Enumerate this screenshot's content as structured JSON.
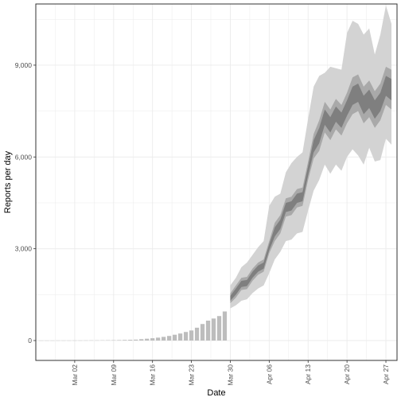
{
  "chart_data": {
    "type": "area",
    "xlabel": "Date",
    "ylabel": "Reports per day",
    "x_range": [
      "2020-02-24",
      "2020-04-29"
    ],
    "ylim": [
      -650,
      11000
    ],
    "y_ticks": [
      0,
      3000,
      6000,
      9000
    ],
    "y_tick_labels": [
      "0",
      "3,000",
      "6,000",
      "9,000"
    ],
    "x_ticks": [
      "2020-03-02",
      "2020-03-09",
      "2020-03-16",
      "2020-03-23",
      "2020-03-30",
      "2020-04-06",
      "2020-04-13",
      "2020-04-20",
      "2020-04-27"
    ],
    "x_tick_labels": [
      "Mar 02",
      "Mar 09",
      "Mar 16",
      "Mar 23",
      "Mar 30",
      "Apr 06",
      "Apr 13",
      "Apr 20",
      "Apr 27"
    ],
    "grid": true,
    "colors": {
      "bars": "#bdbdbd",
      "band_outer": "#d3d3d3",
      "band_mid": "#a9a9a9",
      "band_inner": "#7f7f7f",
      "panel_border": "#333333",
      "grid": "#ebebeb"
    },
    "bars": {
      "dates": [
        "2020-02-25",
        "2020-02-26",
        "2020-02-27",
        "2020-02-28",
        "2020-02-29",
        "2020-03-01",
        "2020-03-02",
        "2020-03-03",
        "2020-03-04",
        "2020-03-05",
        "2020-03-06",
        "2020-03-07",
        "2020-03-08",
        "2020-03-09",
        "2020-03-10",
        "2020-03-11",
        "2020-03-12",
        "2020-03-13",
        "2020-03-14",
        "2020-03-15",
        "2020-03-16",
        "2020-03-17",
        "2020-03-18",
        "2020-03-19",
        "2020-03-20",
        "2020-03-21",
        "2020-03-22",
        "2020-03-23",
        "2020-03-24",
        "2020-03-25",
        "2020-03-26",
        "2020-03-27",
        "2020-03-28",
        "2020-03-29"
      ],
      "values": [
        1,
        1,
        1,
        2,
        2,
        2,
        3,
        3,
        4,
        5,
        6,
        8,
        10,
        12,
        15,
        20,
        25,
        30,
        45,
        60,
        75,
        95,
        120,
        150,
        190,
        230,
        280,
        330,
        420,
        540,
        650,
        720,
        800,
        950
      ]
    },
    "series": [
      {
        "dates": [
          "2020-03-30",
          "2020-03-31",
          "2020-04-01",
          "2020-04-02",
          "2020-04-03",
          "2020-04-04",
          "2020-04-05",
          "2020-04-06",
          "2020-04-07",
          "2020-04-08",
          "2020-04-09",
          "2020-04-10",
          "2020-04-11",
          "2020-04-12",
          "2020-04-13",
          "2020-04-14",
          "2020-04-15",
          "2020-04-16",
          "2020-04-17",
          "2020-04-18",
          "2020-04-19",
          "2020-04-20",
          "2020-04-21",
          "2020-04-22",
          "2020-04-23",
          "2020-04-24",
          "2020-04-25",
          "2020-04-26",
          "2020-04-27",
          "2020-04-28"
        ],
        "median": [
          1380,
          1600,
          1850,
          1880,
          2150,
          2350,
          2450,
          3050,
          3550,
          3800,
          4350,
          4400,
          4650,
          4700,
          5550,
          6350,
          6700,
          7300,
          7050,
          7400,
          7200,
          7600,
          8000,
          8100,
          7700,
          7900,
          7550,
          7800,
          8350,
          8200
        ],
        "inner_low": [
          1300,
          1500,
          1750,
          1780,
          2050,
          2250,
          2350,
          2950,
          3400,
          3650,
          4200,
          4250,
          4500,
          4550,
          5400,
          6150,
          6450,
          7050,
          6800,
          7150,
          6950,
          7350,
          7700,
          7800,
          7400,
          7600,
          7250,
          7500,
          8000,
          7850
        ],
        "inner_high": [
          1460,
          1700,
          1950,
          1980,
          2250,
          2450,
          2550,
          3150,
          3700,
          3950,
          4500,
          4550,
          4800,
          4850,
          5700,
          6550,
          6950,
          7550,
          7300,
          7650,
          7450,
          7850,
          8300,
          8400,
          8000,
          8200,
          7850,
          8100,
          8650,
          8550
        ],
        "mid_low": [
          1220,
          1400,
          1650,
          1680,
          1950,
          2150,
          2250,
          2850,
          3250,
          3500,
          4050,
          4100,
          4350,
          4400,
          5250,
          5950,
          6200,
          6800,
          6550,
          6900,
          6700,
          7100,
          7400,
          7500,
          7100,
          7300,
          6950,
          7200,
          7700,
          7550
        ],
        "mid_high": [
          1540,
          1800,
          2050,
          2080,
          2350,
          2550,
          2650,
          3250,
          3850,
          4100,
          4650,
          4700,
          4950,
          5000,
          5850,
          6750,
          7200,
          7800,
          7550,
          7900,
          7700,
          8100,
          8600,
          8700,
          8300,
          8500,
          8150,
          8400,
          8950,
          8850
        ],
        "outer_low": [
          1050,
          1150,
          1300,
          1350,
          1550,
          1700,
          1800,
          2200,
          2650,
          2900,
          3250,
          3300,
          3500,
          3550,
          4250,
          4900,
          5250,
          5750,
          5450,
          5750,
          5550,
          6000,
          6250,
          6050,
          5750,
          6300,
          5850,
          5900,
          6600,
          6400
        ],
        "outer_high": [
          1800,
          2050,
          2400,
          2550,
          2800,
          3050,
          3250,
          4400,
          4700,
          4800,
          5500,
          5800,
          6000,
          6150,
          7250,
          8300,
          8650,
          8750,
          8950,
          8900,
          8850,
          10050,
          10450,
          10350,
          10000,
          10200,
          9350,
          10000,
          10950,
          10350
        ]
      }
    ]
  }
}
